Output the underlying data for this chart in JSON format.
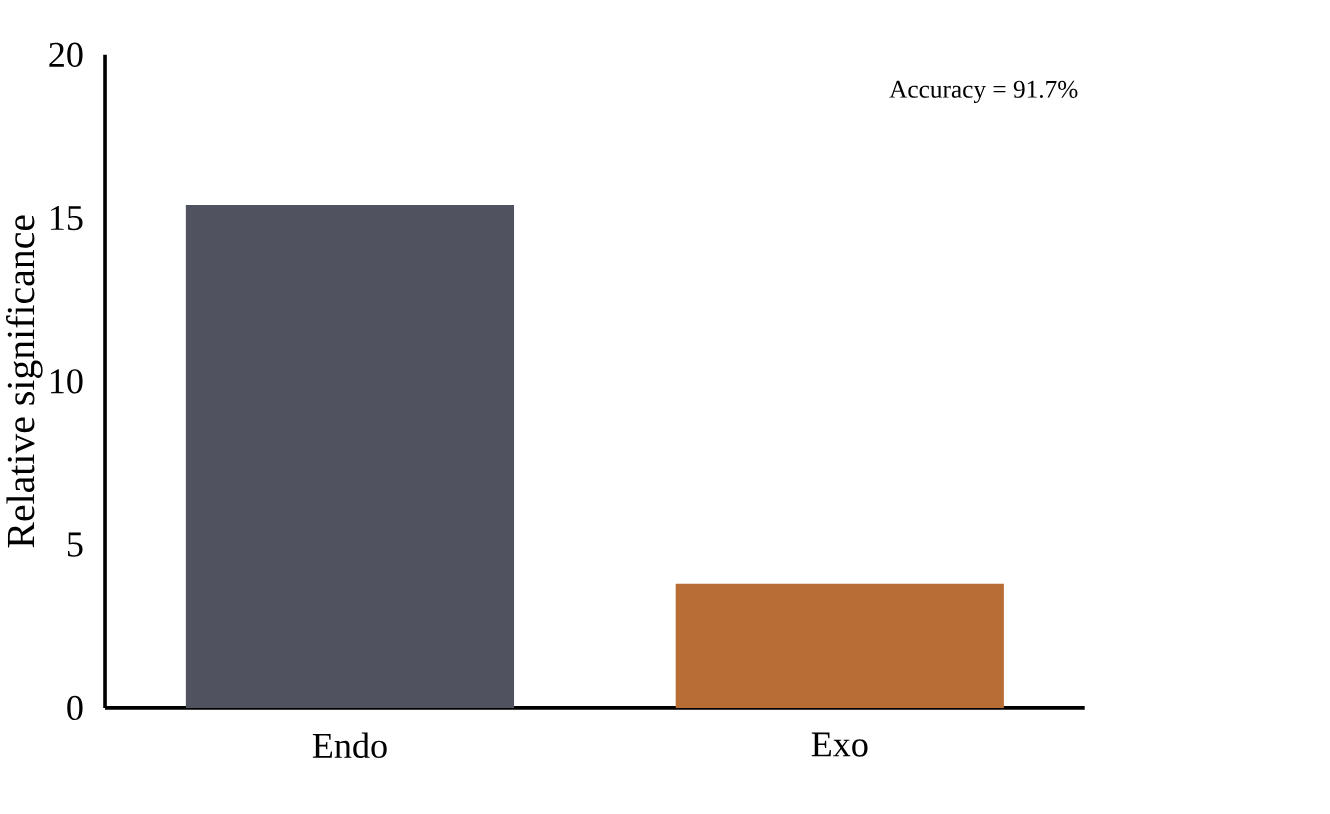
{
  "chart_data": {
    "type": "bar",
    "ylabel": "Relative significance",
    "categories": [
      "Endo",
      "Exo"
    ],
    "values": [
      15.4,
      3.8
    ],
    "colors": [
      "#50535f",
      "#b86d35"
    ],
    "ylim": [
      0,
      20
    ],
    "yticks": [
      0,
      5,
      10,
      15,
      20
    ],
    "grid": false,
    "annotations": [
      "Accuracy = 91.7%"
    ]
  }
}
